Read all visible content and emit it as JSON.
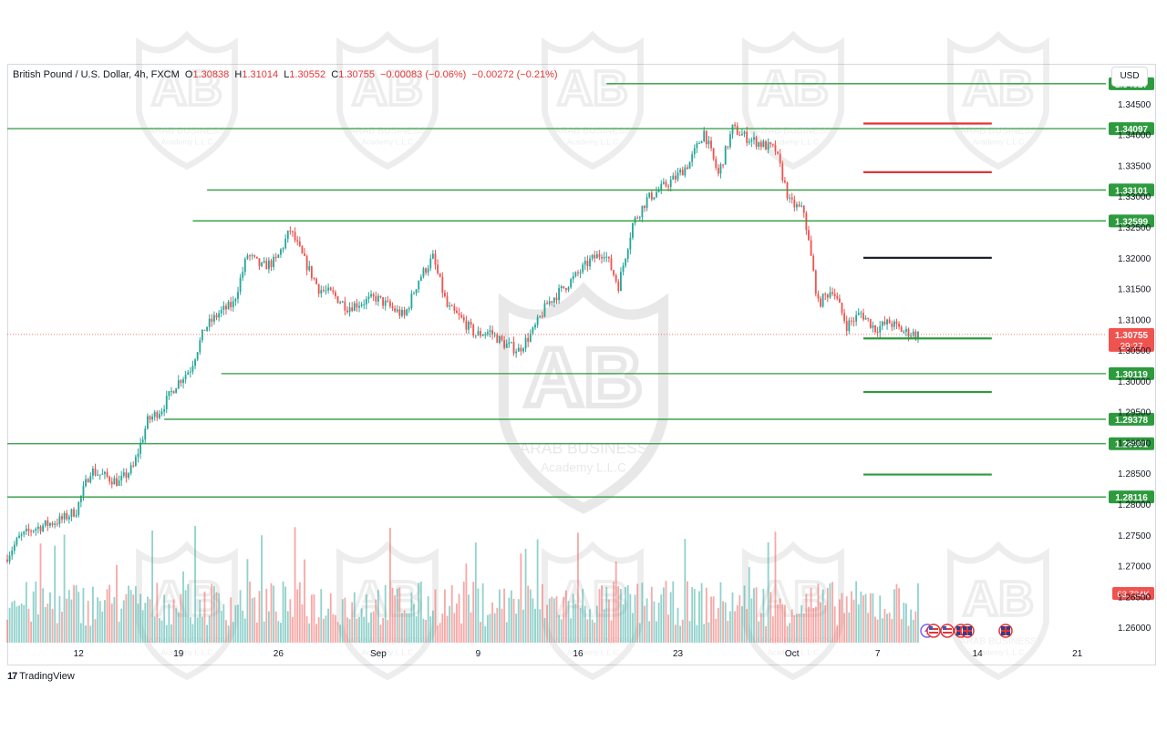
{
  "legend": {
    "symbol": "British Pound / U.S. Dollar, 4h, FXCM",
    "open_label": "O",
    "open": "1.30838",
    "high_label": "H",
    "high": "1.31014",
    "low_label": "L",
    "low": "1.30552",
    "close_label": "C",
    "close": "1.30755",
    "change": "−0.00083 (−0.06%)",
    "change2": "−0.00272 (−0.21%)"
  },
  "currency": "USD",
  "footer": {
    "brand": "TradingView",
    "logo_glyph": "17"
  },
  "watermark": {
    "text": "ARAB BUSINESS",
    "subtext": "Academy L.L.C",
    "monogram": "AB"
  },
  "colors": {
    "up": "#26a69a",
    "down": "#ef5350",
    "support_line": "#2e9a3e",
    "resistance_mark": "#e0363a",
    "pivot_mark": "#131722",
    "price_label_bg": "#ef5350",
    "level_label_bg": "#2e9a3e"
  },
  "events_icons": [
    "lightning-icon",
    "flag-us-icon",
    "flag-us-icon",
    "flag-gb-icon",
    "flag-gb-icon",
    "flag-gb-icon"
  ],
  "chart_data": {
    "type": "candlestick",
    "title": "British Pound / U.S. Dollar, 4h, FXCM",
    "ylim": [
      1.2575,
      1.3515
    ],
    "x_ticks": [
      {
        "label": "12",
        "date": "2024-08-12"
      },
      {
        "label": "19",
        "date": "2024-08-19"
      },
      {
        "label": "26",
        "date": "2024-08-26"
      },
      {
        "label": "Sep",
        "date": "2024-09-02"
      },
      {
        "label": "9",
        "date": "2024-09-09"
      },
      {
        "label": "16",
        "date": "2024-09-16"
      },
      {
        "label": "23",
        "date": "2024-09-23"
      },
      {
        "label": "Oct",
        "date": "2024-10-01"
      },
      {
        "label": "7",
        "date": "2024-10-07"
      },
      {
        "label": "14",
        "date": "2024-10-14"
      },
      {
        "label": "21",
        "date": "2024-10-21"
      }
    ],
    "x_range": [
      "2024-08-07",
      "2024-10-23"
    ],
    "y_ticks": [
      "1.34500",
      "1.34000",
      "1.33500",
      "1.33000",
      "1.32500",
      "1.32000",
      "1.31500",
      "1.31000",
      "1.30500",
      "1.30000",
      "1.29500",
      "1.29000",
      "1.28500",
      "1.28000",
      "1.27500",
      "1.27000",
      "1.26500",
      "1.26000"
    ],
    "last_price": {
      "value": "1.30755",
      "countdown": "29:27"
    },
    "volume_label": "63.734K",
    "horizontal_levels": [
      {
        "value": 1.34827,
        "label": "1.34827",
        "start": "2024-09-18"
      },
      {
        "value": 1.34097,
        "label": "1.34097",
        "start": "2024-08-07"
      },
      {
        "value": 1.33101,
        "label": "1.33101",
        "start": "2024-08-21"
      },
      {
        "value": 1.32599,
        "label": "1.32599",
        "start": "2024-08-20"
      },
      {
        "value": 1.30119,
        "label": "1.30119",
        "start": "2024-08-22"
      },
      {
        "value": 1.29378,
        "label": "1.29378",
        "start": "2024-08-18"
      },
      {
        "value": 1.28981,
        "label": "1.28981",
        "start": "2024-08-07"
      },
      {
        "value": 1.28116,
        "label": "1.28116",
        "start": "2024-08-07"
      }
    ],
    "target_marks": [
      {
        "value": 1.3418,
        "kind": "resistance"
      },
      {
        "value": 1.3339,
        "kind": "resistance"
      },
      {
        "value": 1.32,
        "kind": "pivot"
      },
      {
        "value": 1.3069,
        "kind": "support"
      },
      {
        "value": 1.2982,
        "kind": "support"
      },
      {
        "value": 1.2848,
        "kind": "support"
      }
    ],
    "target_range": [
      "2024-10-06",
      "2024-10-15"
    ],
    "price_path": [
      [
        "2024-08-07",
        1.271
      ],
      [
        "2024-08-08",
        1.2745
      ],
      [
        "2024-08-09",
        1.276
      ],
      [
        "2024-08-11",
        1.2775
      ],
      [
        "2024-08-12",
        1.279
      ],
      [
        "2024-08-13",
        1.2855
      ],
      [
        "2024-08-14",
        1.2845
      ],
      [
        "2024-08-15",
        1.2835
      ],
      [
        "2024-08-16",
        1.286
      ],
      [
        "2024-08-17",
        1.2935
      ],
      [
        "2024-08-18",
        1.2955
      ],
      [
        "2024-08-19",
        1.2995
      ],
      [
        "2024-08-20",
        1.302
      ],
      [
        "2024-08-21",
        1.3085
      ],
      [
        "2024-08-22",
        1.311
      ],
      [
        "2024-08-23",
        1.3125
      ],
      [
        "2024-08-24",
        1.3205
      ],
      [
        "2024-08-25",
        1.3185
      ],
      [
        "2024-08-26",
        1.3195
      ],
      [
        "2024-08-27",
        1.3245
      ],
      [
        "2024-08-28",
        1.3195
      ],
      [
        "2024-08-29",
        1.315
      ],
      [
        "2024-08-30",
        1.314
      ],
      [
        "2024-08-31",
        1.312
      ],
      [
        "2024-09-02",
        1.3135
      ],
      [
        "2024-09-03",
        1.312
      ],
      [
        "2024-09-04",
        1.3105
      ],
      [
        "2024-09-05",
        1.3165
      ],
      [
        "2024-09-06",
        1.32
      ],
      [
        "2024-09-07",
        1.312
      ],
      [
        "2024-09-08",
        1.31
      ],
      [
        "2024-09-09",
        1.3075
      ],
      [
        "2024-09-10",
        1.308
      ],
      [
        "2024-09-11",
        1.306
      ],
      [
        "2024-09-12",
        1.305
      ],
      [
        "2024-09-13",
        1.308
      ],
      [
        "2024-09-14",
        1.3125
      ],
      [
        "2024-09-16",
        1.317
      ],
      [
        "2024-09-17",
        1.3195
      ],
      [
        "2024-09-18",
        1.321
      ],
      [
        "2024-09-19",
        1.3155
      ],
      [
        "2024-09-20",
        1.3255
      ],
      [
        "2024-09-21",
        1.3295
      ],
      [
        "2024-09-23",
        1.333
      ],
      [
        "2024-09-24",
        1.3355
      ],
      [
        "2024-09-25",
        1.3405
      ],
      [
        "2024-09-26",
        1.3335
      ],
      [
        "2024-09-27",
        1.341
      ],
      [
        "2024-09-28",
        1.3395
      ],
      [
        "2024-09-30",
        1.3375
      ],
      [
        "2024-10-01",
        1.329
      ],
      [
        "2024-10-02",
        1.3275
      ],
      [
        "2024-10-03",
        1.3125
      ],
      [
        "2024-10-04",
        1.315
      ],
      [
        "2024-10-05",
        1.309
      ],
      [
        "2024-10-06",
        1.311
      ],
      [
        "2024-10-07",
        1.3085
      ],
      [
        "2024-10-08",
        1.3095
      ],
      [
        "2024-10-09",
        1.308
      ],
      [
        "2024-10-10",
        1.30755
      ]
    ]
  }
}
